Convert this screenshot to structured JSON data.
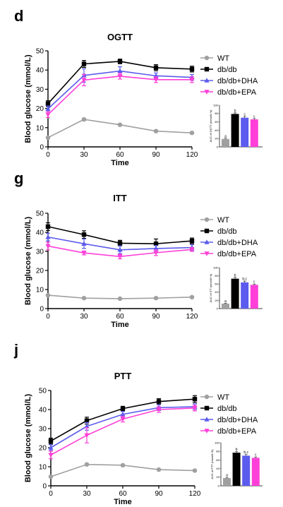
{
  "colors": {
    "WT": "#a0a0a0",
    "dbdb": "#000000",
    "DHA": "#5b5bee",
    "EPA": "#ff3fd8"
  },
  "chart_data": [
    {
      "type": "line",
      "panel": "d",
      "title": "OGTT",
      "xlabel": "Time",
      "ylabel": "Blood glucose (mmol/L)",
      "x": [
        0,
        30,
        60,
        90,
        120
      ],
      "xlim": [
        0,
        120
      ],
      "ylim": [
        0,
        50
      ],
      "yticks": [
        0,
        10,
        20,
        30,
        40,
        50
      ],
      "series": [
        {
          "name": "WT",
          "marker": "circle",
          "values": [
            4.8,
            14.3,
            11.5,
            8.2,
            7.3
          ],
          "err": [
            0.5,
            0.6,
            0.5,
            0.5,
            0.5
          ]
        },
        {
          "name": "db/db",
          "marker": "square",
          "values": [
            22.5,
            43.2,
            44.5,
            41.2,
            40.5
          ],
          "err": [
            1.5,
            1.8,
            1.2,
            1.6,
            1.5
          ]
        },
        {
          "name": "db/db+DHA",
          "marker": "triangle",
          "values": [
            19.8,
            37.2,
            39.5,
            37.0,
            36.2
          ],
          "err": [
            1.5,
            3.5,
            2.2,
            1.5,
            1.5
          ]
        },
        {
          "name": "db/db+EPA",
          "marker": "triangle-down",
          "values": [
            16.8,
            34.8,
            36.8,
            35.0,
            35.0
          ],
          "err": [
            1.5,
            3.0,
            1.5,
            1.5,
            1.5
          ]
        }
      ],
      "inset": {
        "ylabel": "AUC of OGTT (mmol/L*h)",
        "yticks": [
          0,
          20,
          40,
          60,
          80,
          100
        ],
        "ylim": [
          0,
          100
        ],
        "values": [
          19,
          79,
          70,
          66
        ],
        "err": [
          1.5,
          2.5,
          3,
          2
        ],
        "letters": [
          "a",
          "b",
          "c",
          "c"
        ]
      }
    },
    {
      "type": "line",
      "panel": "g",
      "title": "ITT",
      "xlabel": "Time",
      "ylabel": "Blood glucose (mmol/L)",
      "x": [
        0,
        30,
        60,
        90,
        120
      ],
      "xlim": [
        0,
        120
      ],
      "ylim": [
        0,
        50
      ],
      "yticks": [
        0,
        10,
        20,
        30,
        40,
        50
      ],
      "series": [
        {
          "name": "WT",
          "marker": "circle",
          "values": [
            7.0,
            5.5,
            5.2,
            5.5,
            6.0
          ],
          "err": [
            0.5,
            0.4,
            0.4,
            0.4,
            0.4
          ]
        },
        {
          "name": "db/db",
          "marker": "square",
          "values": [
            43.0,
            38.8,
            34.3,
            34.0,
            35.5
          ],
          "err": [
            2.0,
            2.0,
            1.5,
            2.5,
            1.5
          ]
        },
        {
          "name": "db/db+DHA",
          "marker": "triangle",
          "values": [
            37.5,
            34.0,
            30.8,
            31.5,
            32.0
          ],
          "err": [
            2.0,
            2.5,
            2.0,
            1.5,
            1.5
          ]
        },
        {
          "name": "db/db+EPA",
          "marker": "triangle-down",
          "values": [
            32.8,
            29.2,
            27.3,
            29.3,
            31.0
          ],
          "err": [
            2.0,
            1.0,
            1.2,
            1.5,
            1.0
          ]
        }
      ],
      "inset": {
        "ylabel": "AUC of ITT (mmol/L*h)",
        "yticks": [
          0,
          20,
          40,
          60,
          80,
          100
        ],
        "ylim": [
          0,
          100
        ],
        "values": [
          12,
          73,
          64,
          58
        ],
        "err": [
          1,
          3,
          3,
          2
        ],
        "letters": [
          "a",
          "b",
          "b,c",
          "c"
        ]
      }
    },
    {
      "type": "line",
      "panel": "j",
      "title": "PTT",
      "xlabel": "Time",
      "ylabel": "Blood glucose (mmol/L)",
      "x": [
        0,
        30,
        60,
        90,
        120
      ],
      "xlim": [
        0,
        120
      ],
      "ylim": [
        0,
        50
      ],
      "yticks": [
        0,
        10,
        20,
        30,
        40,
        50
      ],
      "series": [
        {
          "name": "WT",
          "marker": "circle",
          "values": [
            4.8,
            11.2,
            10.8,
            8.5,
            8.0
          ],
          "err": [
            0.4,
            0.5,
            0.5,
            0.4,
            0.4
          ]
        },
        {
          "name": "db/db",
          "marker": "square",
          "values": [
            23.5,
            34.2,
            40.5,
            44.2,
            45.5
          ],
          "err": [
            1.5,
            1.8,
            1.2,
            1.5,
            1.8
          ]
        },
        {
          "name": "db/db+DHA",
          "marker": "triangle",
          "values": [
            20.0,
            31.2,
            37.5,
            41.0,
            41.5
          ],
          "err": [
            1.5,
            2.0,
            1.5,
            1.5,
            1.5
          ]
        },
        {
          "name": "db/db+EPA",
          "marker": "triangle-down",
          "values": [
            16.2,
            26.5,
            35.0,
            40.0,
            40.8
          ],
          "err": [
            2.0,
            4.0,
            1.5,
            1.5,
            1.5
          ]
        }
      ],
      "inset": {
        "ylabel": "AUC of PTT (mmol/L*h)",
        "yticks": [
          0,
          20,
          40,
          60,
          80,
          100
        ],
        "ylim": [
          0,
          100
        ],
        "values": [
          18,
          77,
          70,
          65
        ],
        "err": [
          1.5,
          2.5,
          2.5,
          2
        ],
        "letters": [
          "a",
          "b",
          "b,c",
          "c"
        ]
      }
    }
  ]
}
